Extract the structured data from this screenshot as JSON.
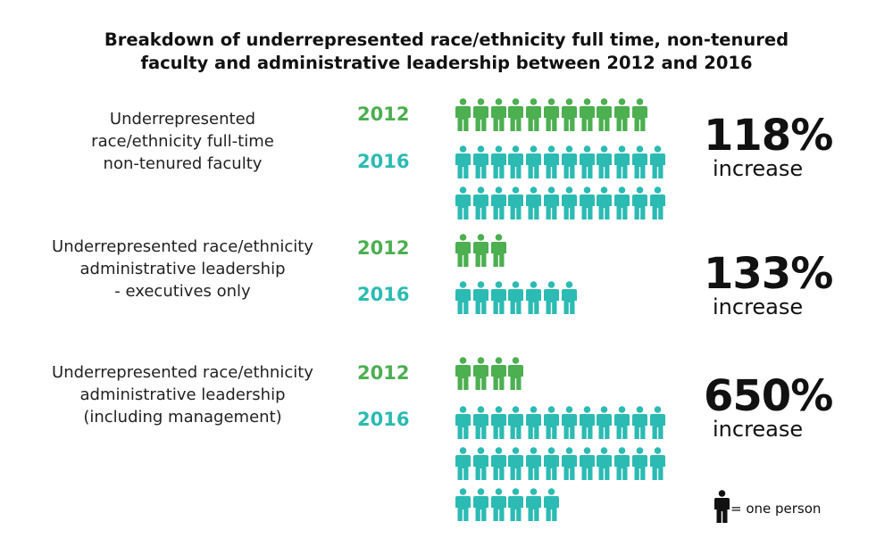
{
  "title_line1": "Breakdown of underrepresented race/ethnicity full time, non-tenured",
  "title_line2": "faculty and administrative leadership between 2012 and 2016",
  "colors": {
    "y2012": "#4caf50",
    "y2016": "#2bbbb3",
    "legend": "#111111"
  },
  "groups": [
    {
      "label": [
        "Underrepresented",
        "race/ethnicity full-time",
        "non-tenured faculty"
      ],
      "year_a": "2012",
      "count_a": 11,
      "year_b": "2016",
      "count_b": 24,
      "percent": "118%",
      "change": "increase"
    },
    {
      "label": [
        "Underrepresented race/ethnicity",
        "administrative leadership",
        "- executives only"
      ],
      "year_a": "2012",
      "count_a": 3,
      "year_b": "2016",
      "count_b": 7,
      "percent": "133%",
      "change": "increase"
    },
    {
      "label": [
        "Underrepresented race/ethnicity",
        "administrative leadership",
        "(including management)"
      ],
      "year_a": "2012",
      "count_a": 4,
      "year_b": "2016",
      "count_b": 30,
      "percent": "650%",
      "change": "increase"
    }
  ],
  "legend": {
    "icon": "person-icon",
    "text": "= one person"
  }
}
